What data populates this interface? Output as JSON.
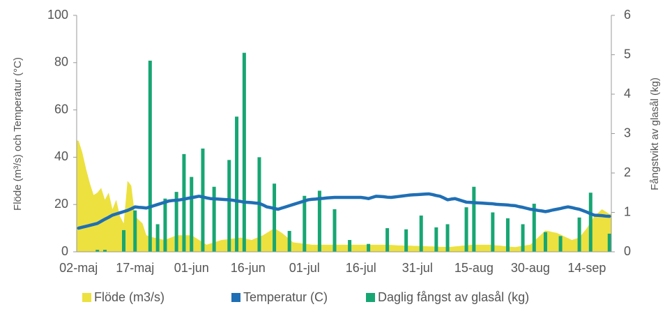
{
  "chart_data": {
    "type": "combo",
    "y_label": "Flöde (m³/s) och Temperatur (°C)",
    "y2_label": "Fångstvikt  av glasål  (kg)",
    "categories": [
      "02-maj",
      null,
      null,
      null,
      null,
      null,
      null,
      null,
      null,
      null,
      null,
      null,
      null,
      null,
      null,
      "17-maj",
      null,
      null,
      null,
      null,
      null,
      null,
      null,
      null,
      null,
      null,
      null,
      null,
      null,
      null,
      "01-jun",
      null,
      null,
      null,
      null,
      null,
      null,
      null,
      null,
      null,
      null,
      null,
      null,
      null,
      null,
      "16-jun",
      null,
      null,
      null,
      null,
      null,
      null,
      null,
      null,
      null,
      null,
      null,
      null,
      null,
      null,
      "01-jul",
      null,
      null,
      null,
      null,
      null,
      null,
      null,
      null,
      null,
      null,
      null,
      null,
      null,
      null,
      "16-jul",
      null,
      null,
      null,
      null,
      null,
      null,
      null,
      null,
      null,
      null,
      null,
      null,
      null,
      null,
      "31-jul",
      null,
      null,
      null,
      null,
      null,
      null,
      null,
      null,
      null,
      null,
      null,
      null,
      null,
      null,
      "15-aug",
      null,
      null,
      null,
      null,
      null,
      null,
      null,
      null,
      null,
      null,
      null,
      null,
      null,
      null,
      "30-aug",
      null,
      null,
      null,
      null,
      null,
      null,
      null,
      null,
      null,
      null,
      null,
      null,
      null,
      null,
      "14-sep",
      null,
      null,
      null,
      null,
      null,
      null
    ],
    "ylim": [
      0,
      100
    ],
    "yticks": [
      0,
      20,
      40,
      60,
      80,
      100
    ],
    "y2lim": [
      0,
      6
    ],
    "y2ticks": [
      0,
      1,
      2,
      3,
      4,
      5,
      6
    ],
    "grid": false,
    "legend": "bottom",
    "series": [
      {
        "name": "Flöde (m3/s)",
        "type": "area",
        "color": "#ece13f",
        "values": [
          47,
          42,
          35,
          29,
          24,
          25,
          27,
          22,
          25,
          18,
          22,
          15,
          12,
          30,
          28,
          15,
          13.5,
          12,
          7,
          6.5,
          6,
          5.7,
          5.3,
          5,
          5.7,
          6.3,
          7,
          7,
          7,
          7,
          7,
          6,
          5,
          4,
          3,
          3.5,
          4,
          4.5,
          5,
          5.2,
          5.4,
          5.6,
          5.8,
          6,
          5.7,
          5.3,
          5,
          5.7,
          6.3,
          7,
          8,
          9,
          10,
          9,
          8,
          6.7,
          5.3,
          4,
          3.8,
          3.6,
          3.4,
          3.2,
          3,
          3,
          3,
          3,
          3,
          3,
          3,
          3,
          3,
          3,
          3,
          3,
          3,
          3,
          3,
          3,
          3,
          3,
          3,
          3,
          2.9,
          2.9,
          2.8,
          2.7,
          2.7,
          2.6,
          2.6,
          2.5,
          2.5,
          2.4,
          2.4,
          2.3,
          2.3,
          2.2,
          2.1,
          2.1,
          2,
          2.1,
          2.3,
          2.4,
          2.6,
          2.7,
          2.9,
          3,
          3,
          3,
          3,
          3,
          2.9,
          2.7,
          2.6,
          2.4,
          2.3,
          2.1,
          2,
          2.3,
          2.5,
          2.8,
          3,
          4.5,
          6,
          7.5,
          9,
          8.7,
          8.3,
          8,
          7.3,
          6.5,
          5.8,
          5,
          5.5,
          6,
          8,
          10,
          12.5,
          15,
          16.5,
          18,
          17,
          16
        ]
      },
      {
        "name": "Temperatur (C)",
        "type": "line",
        "color": "#1f6fb5",
        "values": [
          10,
          10.4,
          10.8,
          11.2,
          11.6,
          12,
          12.9,
          13.8,
          14.6,
          15.5,
          16,
          16.5,
          17,
          17.5,
          18.2,
          19,
          18.8,
          18.7,
          18.5,
          19,
          19.5,
          20,
          20.5,
          21,
          21.5,
          21.7,
          21.8,
          22,
          22.3,
          22.6,
          22.9,
          23.2,
          23.5,
          23.2,
          22.8,
          22.5,
          22.4,
          22.3,
          22.2,
          22.1,
          22,
          21.8,
          21.5,
          21.3,
          21,
          20.9,
          20.8,
          20.6,
          20.5,
          19.8,
          19,
          18.7,
          18.3,
          18,
          18.5,
          19,
          19.5,
          20,
          20.5,
          21,
          21.5,
          22,
          22.2,
          22.3,
          22.5,
          22.6,
          22.8,
          22.9,
          23,
          23,
          23,
          23,
          23,
          23,
          23,
          23,
          22.8,
          22.5,
          23,
          23.5,
          23.4,
          23.3,
          23.1,
          23,
          23.2,
          23.4,
          23.6,
          23.8,
          24,
          24.1,
          24.2,
          24.3,
          24.4,
          24.5,
          24.2,
          23.8,
          23.5,
          22.8,
          22,
          22.3,
          22.5,
          22,
          21.5,
          21,
          20.9,
          20.8,
          20.7,
          20.6,
          20.5,
          20.4,
          20.3,
          20.1,
          20,
          19.9,
          19.8,
          19.6,
          19.5,
          19.1,
          18.8,
          18.4,
          18,
          17.8,
          17.5,
          17.3,
          17,
          17.3,
          17.7,
          18,
          18.3,
          18.7,
          19,
          18.7,
          18.3,
          18,
          17.4,
          16.8,
          16.1,
          15.5,
          15.4,
          15.3,
          15.1,
          15
        ]
      },
      {
        "name": "Daglig fångst av glasål (kg)",
        "type": "bar",
        "axis": "y2",
        "color": "#17a673",
        "values": [
          null,
          null,
          null,
          null,
          null,
          0.05,
          null,
          0.05,
          null,
          null,
          null,
          null,
          0.55,
          null,
          null,
          1.05,
          null,
          null,
          null,
          4.85,
          null,
          0.7,
          null,
          1.35,
          null,
          null,
          1.52,
          null,
          2.48,
          null,
          1.9,
          null,
          null,
          2.62,
          null,
          null,
          1.65,
          null,
          null,
          null,
          2.33,
          null,
          3.43,
          null,
          5.05,
          null,
          null,
          null,
          2.4,
          null,
          null,
          null,
          1.73,
          null,
          null,
          null,
          0.53,
          null,
          null,
          null,
          1.42,
          null,
          null,
          null,
          1.55,
          null,
          null,
          null,
          1.08,
          null,
          null,
          null,
          0.3,
          null,
          null,
          null,
          null,
          0.2,
          null,
          null,
          null,
          null,
          0.6,
          null,
          null,
          null,
          null,
          0.57,
          null,
          null,
          null,
          0.92,
          null,
          null,
          null,
          0.62,
          null,
          null,
          0.7,
          null,
          null,
          null,
          null,
          1.13,
          null,
          1.65,
          null,
          null,
          null,
          null,
          1,
          null,
          null,
          null,
          0.85,
          null,
          null,
          null,
          0.7,
          null,
          null,
          1.22,
          null,
          null,
          0.5,
          null,
          null,
          null,
          0.4,
          null,
          null,
          null,
          null,
          0.87,
          null,
          null,
          1.5,
          null,
          null,
          null,
          null,
          0.46
        ]
      }
    ]
  }
}
